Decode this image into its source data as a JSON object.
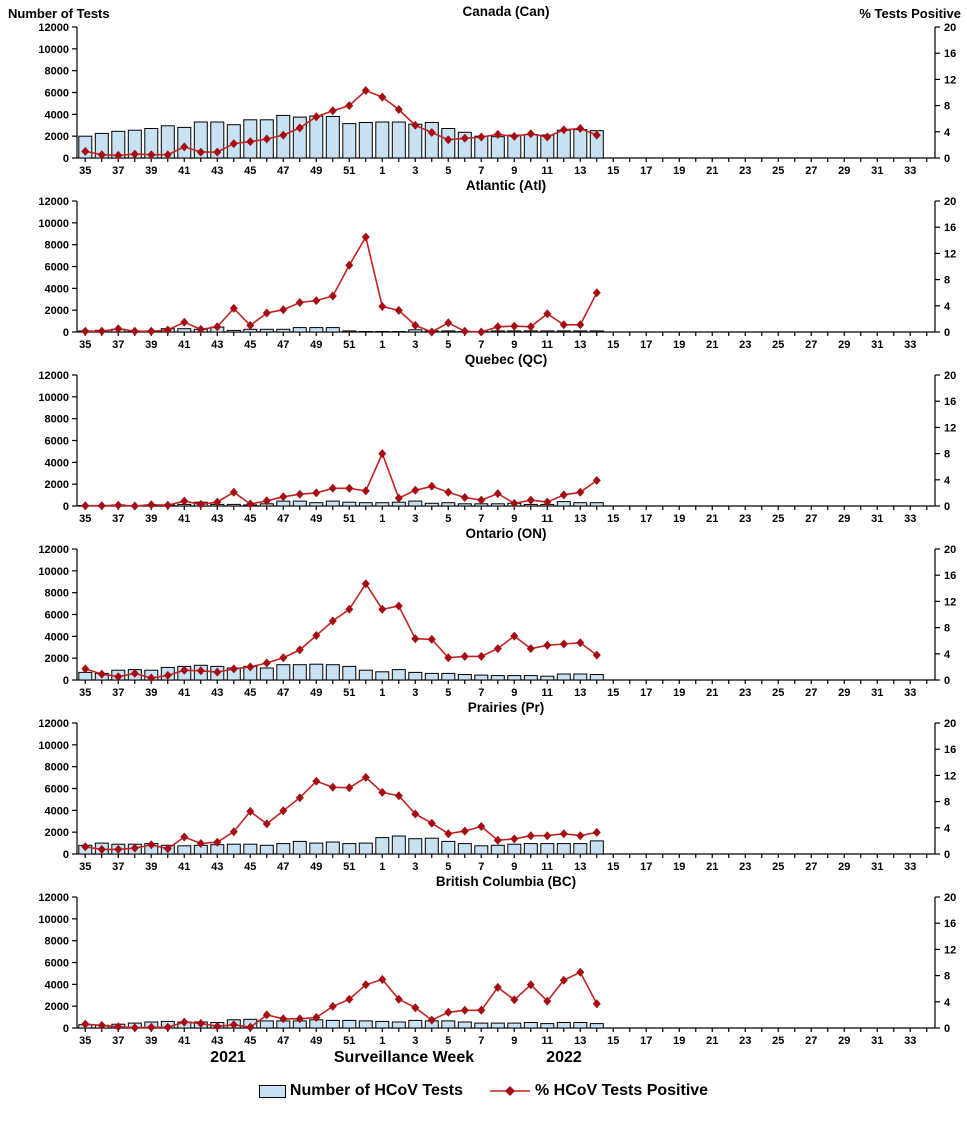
{
  "left_axis_title": "Number of Tests",
  "right_axis_title": "% Tests Positive",
  "footer": {
    "year_left": "2021",
    "xlabel": "Surveillance Week",
    "year_right": "2022"
  },
  "legend": {
    "bars_label": "Number of HCoV Tests",
    "line_label": "% HCoV Tests Positive"
  },
  "colors": {
    "bar_fill": "#c9e2f3",
    "bar_stroke": "#000000",
    "line": "#c32222",
    "marker": "#a50d12",
    "axis": "#000000"
  },
  "chart_data": {
    "type": "bar+line",
    "x_axis_label": "Surveillance Week",
    "axis_weeks": [
      35,
      36,
      37,
      38,
      39,
      40,
      41,
      42,
      43,
      44,
      45,
      46,
      47,
      48,
      49,
      50,
      51,
      52,
      1,
      2,
      3,
      4,
      5,
      6,
      7,
      8,
      9,
      10,
      11,
      12,
      13,
      14,
      15,
      16,
      17,
      18,
      19,
      20,
      21,
      22,
      23,
      24,
      25,
      26,
      27,
      28,
      29,
      30,
      31,
      32,
      33,
      34
    ],
    "labeled_ticks": [
      35,
      37,
      39,
      41,
      43,
      45,
      47,
      49,
      51,
      1,
      3,
      5,
      7,
      9,
      11,
      13,
      15,
      17,
      19,
      21,
      23,
      25,
      27,
      29,
      31,
      33
    ],
    "categories": [
      35,
      36,
      37,
      38,
      39,
      40,
      41,
      42,
      43,
      44,
      45,
      46,
      47,
      48,
      49,
      50,
      51,
      52,
      1,
      2,
      3,
      4,
      5,
      6,
      7,
      8,
      9,
      10,
      11,
      12,
      13,
      14
    ],
    "left_ylim": [
      0,
      12000
    ],
    "right_ylim": [
      0,
      20
    ],
    "left_yticks": [
      0,
      2000,
      4000,
      6000,
      8000,
      10000,
      12000
    ],
    "right_yticks": [
      0,
      4,
      8,
      12,
      16,
      20
    ],
    "grid": false,
    "legend_position": "bottom",
    "panels": [
      {
        "title": "Canada (Can)",
        "tests": [
          2000,
          2250,
          2450,
          2550,
          2700,
          2950,
          2800,
          3300,
          3300,
          3050,
          3500,
          3500,
          3900,
          3750,
          3850,
          3800,
          3150,
          3250,
          3300,
          3300,
          3100,
          3250,
          2700,
          2350,
          2000,
          1950,
          2100,
          2150,
          2100,
          2550,
          2600,
          2500
        ],
        "pct_positive": [
          1.0,
          0.5,
          0.4,
          0.6,
          0.5,
          0.5,
          1.7,
          0.9,
          0.9,
          2.2,
          2.5,
          2.9,
          3.5,
          4.6,
          6.3,
          7.2,
          8.0,
          10.3,
          9.3,
          7.4,
          5.0,
          3.9,
          2.8,
          3.0,
          3.2,
          3.6,
          3.3,
          3.7,
          3.2,
          4.3,
          4.5,
          3.5
        ]
      },
      {
        "title": "Atlantic (Atl)",
        "tests": [
          100,
          150,
          250,
          100,
          100,
          300,
          300,
          250,
          450,
          150,
          250,
          250,
          250,
          400,
          400,
          400,
          100,
          50,
          50,
          50,
          200,
          100,
          100,
          50,
          50,
          100,
          100,
          100,
          100,
          100,
          100,
          100
        ],
        "pct_positive": [
          0.1,
          0.1,
          0.5,
          0.1,
          0.1,
          0.3,
          1.5,
          0.4,
          0.8,
          3.6,
          1.0,
          2.9,
          3.4,
          4.5,
          4.8,
          5.5,
          10.2,
          14.5,
          3.9,
          3.3,
          1.0,
          0.0,
          1.4,
          0.1,
          0.0,
          0.8,
          0.9,
          0.8,
          2.8,
          1.1,
          1.1,
          6.0
        ]
      },
      {
        "title": "Quebec (QC)",
        "tests": [
          50,
          50,
          100,
          50,
          100,
          100,
          150,
          350,
          150,
          150,
          100,
          200,
          450,
          450,
          300,
          450,
          350,
          300,
          300,
          350,
          450,
          250,
          300,
          200,
          200,
          200,
          250,
          150,
          150,
          400,
          300,
          300
        ],
        "pct_positive": [
          0.05,
          0.05,
          0.1,
          0.0,
          0.2,
          0.1,
          0.75,
          0.25,
          0.6,
          2.1,
          0.3,
          0.8,
          1.4,
          1.8,
          2.0,
          2.7,
          2.7,
          2.3,
          8.0,
          1.2,
          2.4,
          3.0,
          2.1,
          1.3,
          0.9,
          1.9,
          0.4,
          0.9,
          0.6,
          1.7,
          2.1,
          3.9
        ]
      },
      {
        "title": "Ontario (ON)",
        "tests": [
          700,
          600,
          900,
          950,
          900,
          1150,
          1250,
          1350,
          1250,
          1100,
          1250,
          1100,
          1400,
          1400,
          1450,
          1400,
          1250,
          900,
          750,
          950,
          700,
          600,
          600,
          500,
          450,
          400,
          400,
          400,
          350,
          550,
          550,
          500
        ],
        "pct_positive": [
          1.7,
          0.9,
          0.5,
          1.0,
          0.3,
          0.7,
          1.5,
          1.4,
          1.2,
          1.7,
          2.0,
          2.6,
          3.4,
          4.6,
          6.8,
          9.0,
          10.8,
          14.7,
          10.8,
          11.3,
          6.3,
          6.2,
          3.4,
          3.6,
          3.6,
          4.8,
          6.7,
          4.8,
          5.3,
          5.5,
          5.7,
          3.8
        ]
      },
      {
        "title": "Prairies (Pr)",
        "tests": [
          800,
          1000,
          900,
          900,
          950,
          800,
          750,
          800,
          850,
          900,
          900,
          800,
          950,
          1150,
          1000,
          1100,
          950,
          1000,
          1500,
          1650,
          1400,
          1450,
          1150,
          950,
          750,
          800,
          900,
          950,
          950,
          950,
          950,
          1200
        ],
        "pct_positive": [
          1.1,
          0.7,
          0.7,
          0.9,
          1.4,
          0.8,
          2.6,
          1.6,
          1.8,
          3.4,
          6.5,
          4.6,
          6.6,
          8.6,
          11.1,
          10.2,
          10.1,
          11.7,
          9.4,
          8.9,
          6.1,
          4.7,
          3.1,
          3.5,
          4.2,
          2.1,
          2.3,
          2.8,
          2.8,
          3.1,
          2.8,
          3.3
        ]
      },
      {
        "title": "British Columbia (BC)",
        "tests": [
          300,
          250,
          350,
          450,
          550,
          600,
          550,
          550,
          500,
          750,
          800,
          650,
          650,
          650,
          750,
          700,
          700,
          650,
          600,
          550,
          700,
          650,
          650,
          550,
          450,
          450,
          450,
          500,
          400,
          500,
          500,
          400
        ],
        "pct_positive": [
          0.6,
          0.4,
          0.2,
          0.05,
          0.1,
          0.1,
          0.9,
          0.7,
          0.25,
          0.5,
          0.1,
          2.0,
          1.4,
          1.4,
          1.6,
          3.3,
          4.4,
          6.6,
          7.4,
          4.4,
          3.1,
          1.2,
          2.4,
          2.7,
          2.7,
          6.2,
          4.3,
          6.6,
          4.1,
          7.3,
          8.5,
          3.7
        ]
      }
    ]
  }
}
